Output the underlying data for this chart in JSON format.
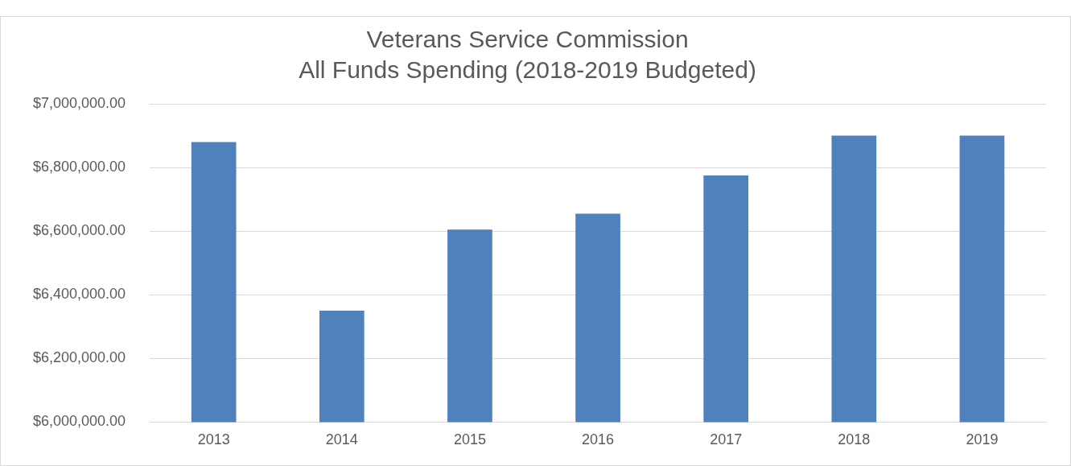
{
  "chart_data": {
    "type": "bar",
    "title": "Veterans Service Commission",
    "subtitle": "All Funds Spending (2018-2019 Budgeted)",
    "categories": [
      "2013",
      "2014",
      "2015",
      "2016",
      "2017",
      "2018",
      "2019"
    ],
    "values": [
      6880000,
      6350000,
      6605000,
      6655000,
      6775000,
      6900000,
      6900000
    ],
    "color": "#4f81bd",
    "ylim": [
      6000000,
      7000000
    ],
    "yticks": [
      {
        "value": 6000000,
        "label": "$6,000,000.00"
      },
      {
        "value": 6200000,
        "label": "$6,200,000.00"
      },
      {
        "value": 6400000,
        "label": "$6,400,000.00"
      },
      {
        "value": 6600000,
        "label": "$6,600,000.00"
      },
      {
        "value": 6800000,
        "label": "$6,800,000.00"
      },
      {
        "value": 7000000,
        "label": "$7,000,000.00"
      }
    ],
    "grid": "y",
    "legend": false
  }
}
